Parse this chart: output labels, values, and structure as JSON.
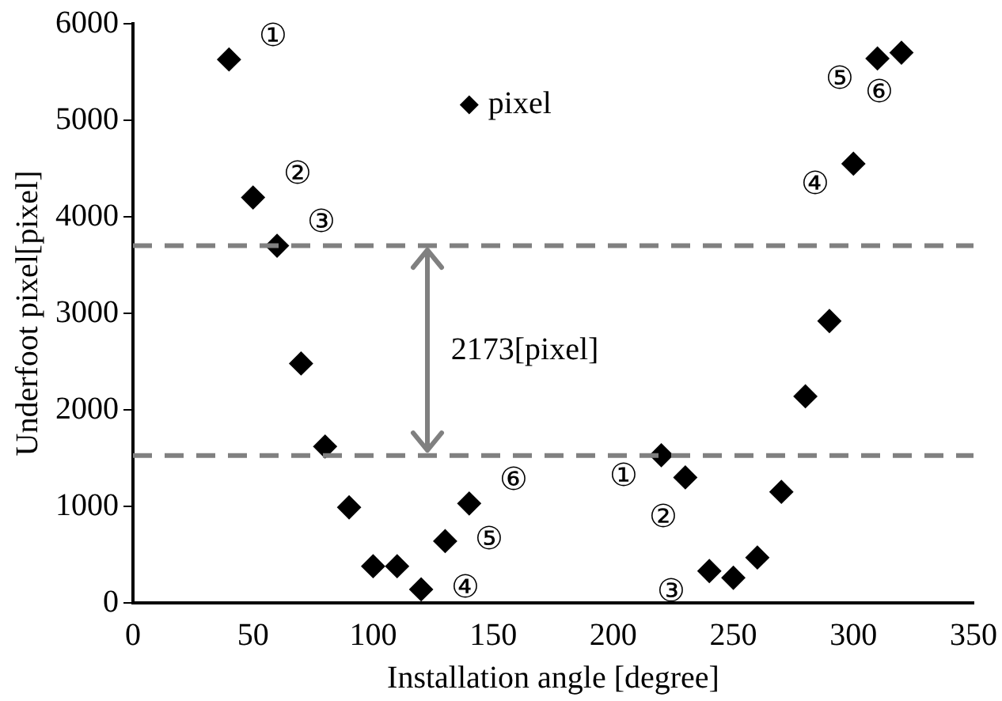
{
  "chart_data": {
    "type": "scatter",
    "xlabel": "Installation angle [degree]",
    "ylabel": "Underfoot pixel[pixel]",
    "xlim": [
      0,
      350
    ],
    "xticks": [
      0,
      50,
      100,
      150,
      200,
      250,
      300,
      350
    ],
    "ylim": [
      0,
      6000
    ],
    "yticks": [
      0,
      1000,
      2000,
      3000,
      4000,
      5000,
      6000
    ],
    "grid": false,
    "legend": "top",
    "marker": "diamond",
    "series": [
      {
        "name": "pixel",
        "color": "#000000",
        "x": [
          40,
          50,
          60,
          70,
          80,
          90,
          100,
          110,
          120,
          130,
          140,
          220,
          230,
          240,
          250,
          260,
          270,
          280,
          290,
          300,
          310,
          320
        ],
        "values": [
          5630,
          4200,
          3700,
          2480,
          1620,
          990,
          380,
          380,
          140,
          640,
          1030,
          1530,
          1300,
          330,
          260,
          470,
          1150,
          2140,
          2920,
          4550,
          5640,
          5700
        ]
      }
    ],
    "ref_lines": [
      {
        "axis": "y",
        "value": 3700,
        "color": "#808080",
        "line_style": "dashed"
      },
      {
        "axis": "y",
        "value": 1527,
        "color": "#808080",
        "line_style": "dashed"
      }
    ],
    "annotations": [
      {
        "text": "①",
        "x": 40,
        "y": 5630
      },
      {
        "text": "②",
        "x": 50,
        "y": 4200
      },
      {
        "text": "③",
        "x": 60,
        "y": 3700
      },
      {
        "text": "④",
        "x": 120,
        "y": 140
      },
      {
        "text": "⑤",
        "x": 130,
        "y": 640
      },
      {
        "text": "⑥",
        "x": 140,
        "y": 1030
      },
      {
        "text": "①",
        "x": 220,
        "y": 1530
      },
      {
        "text": "②",
        "x": 230,
        "y": 1300
      },
      {
        "text": "③",
        "x": 240,
        "y": 330
      },
      {
        "text": "④",
        "x": 300,
        "y": 4550
      },
      {
        "text": "⑤",
        "x": 310,
        "y": 5640
      },
      {
        "text": "⑥",
        "x": 320,
        "y": 5700
      },
      "2173[pixel]"
    ]
  }
}
